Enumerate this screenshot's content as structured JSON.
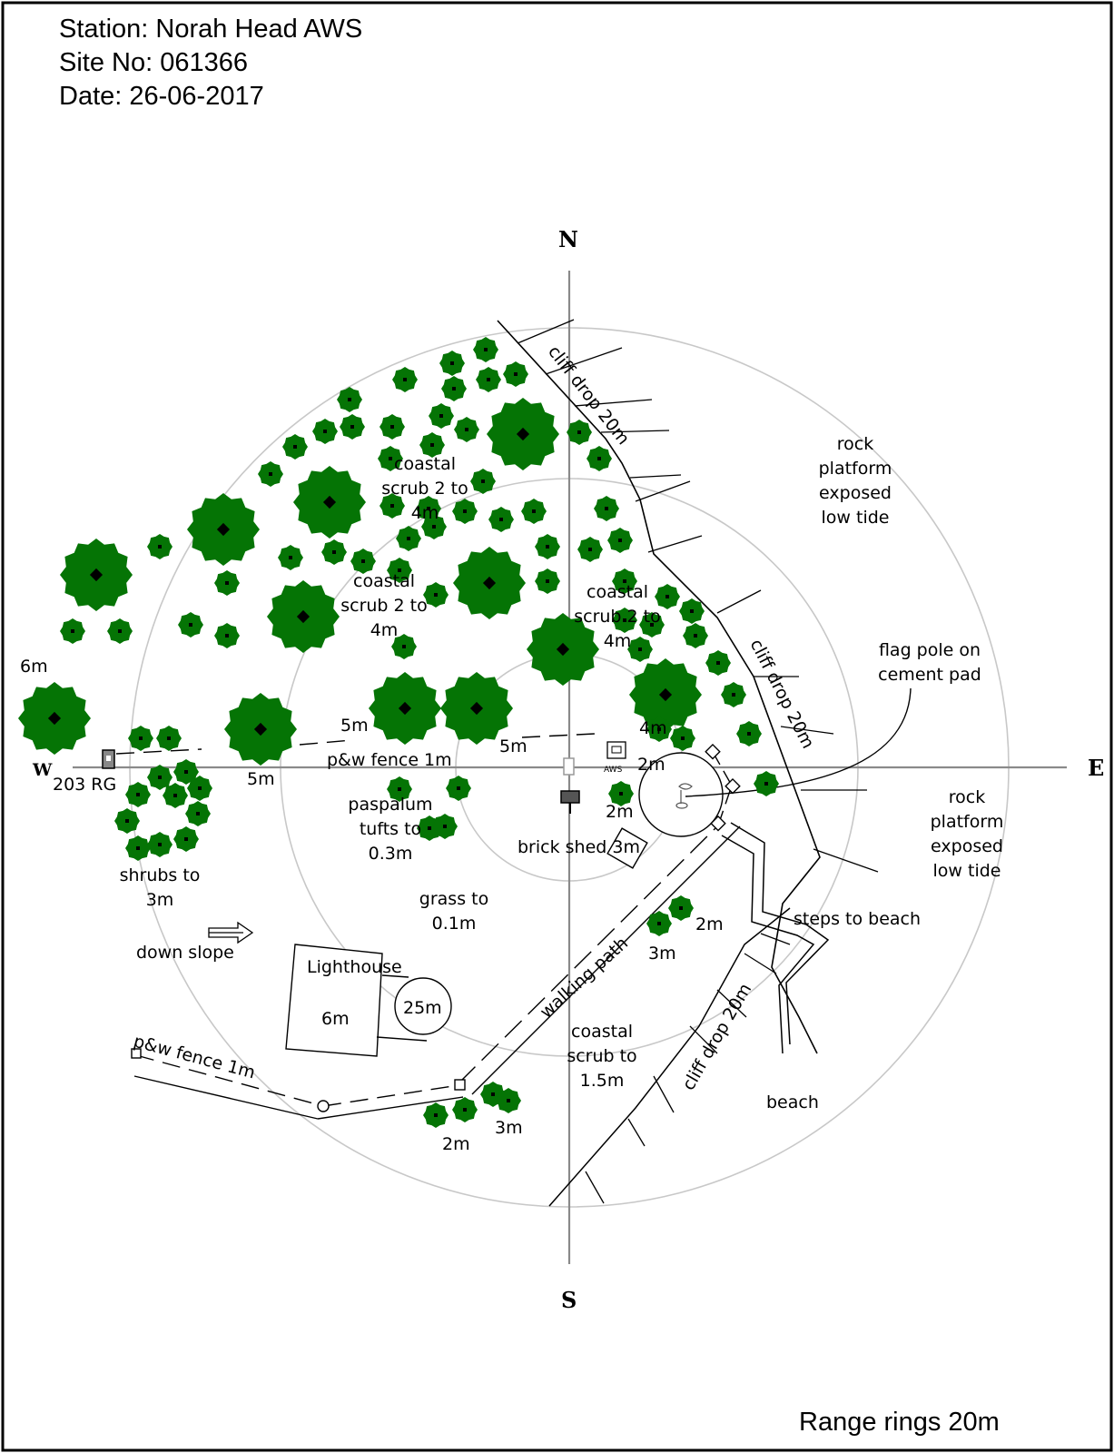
{
  "header": {
    "station": "Station: Norah Head AWS",
    "site_no": "Site No: 061366",
    "date": "Date: 26-06-2017"
  },
  "footer": {
    "range_rings": "Range rings 20m"
  },
  "compass": {
    "north": "N",
    "south": "S",
    "east": "E",
    "west": "W"
  },
  "labels": {
    "cliff_drop_top": "cliff drop 20m",
    "cliff_drop_right": "cliff drop 20m",
    "cliff_drop_bottom": "cliff drop 20m",
    "rock_platform_top": [
      "rock",
      "platform",
      "exposed",
      "low tide"
    ],
    "rock_platform_bottom": [
      "rock",
      "platform",
      "exposed",
      "low tide"
    ],
    "flag_pole": [
      "flag pole on",
      "cement pad"
    ],
    "coastal_scrub_top": [
      "coastal",
      "scrub 2 to",
      "4m"
    ],
    "coastal_scrub_mid": [
      "coastal",
      "scrub 2 to",
      "4m"
    ],
    "coastal_scrub_right": [
      "coastal",
      "scrub 2 to",
      "4m"
    ],
    "coastal_scrub_south": [
      "coastal",
      "scrub to",
      "1.5m"
    ],
    "height_6m_west": "6m",
    "height_5m_a": "5m",
    "height_5m_b": "5m",
    "height_5m_c": "5m",
    "height_4m_east": "4m",
    "height_2m_aws": "2m",
    "height_2m_shed": "2m",
    "height_2m_se": "2m",
    "height_3m_se": "3m",
    "height_2m_s": "2m",
    "height_3m_s": "3m",
    "pw_fence_north": "p&w fence 1m",
    "pw_fence_south": "p&w fence 1m",
    "rain_gauge": "203 RG",
    "aws_tag": "AWS",
    "paspalum": [
      "paspalum",
      "tufts to",
      "0.3m"
    ],
    "brick_shed": "brick shed 3m",
    "shrubs": [
      "shrubs to",
      "3m"
    ],
    "grass": [
      "grass to",
      "0.1m"
    ],
    "down_slope": "down slope",
    "lighthouse": "Lighthouse",
    "lighthouse_height": "6m",
    "tower_height": "25m",
    "walking_path": "walking path",
    "steps_to_beach": "steps to beach",
    "beach": "beach"
  },
  "colors": {
    "tree_fill": "#057405",
    "tree_dark": "#006000",
    "ring": "#c8c8c8",
    "axis": "#8a8a8a",
    "line": "#000000"
  }
}
